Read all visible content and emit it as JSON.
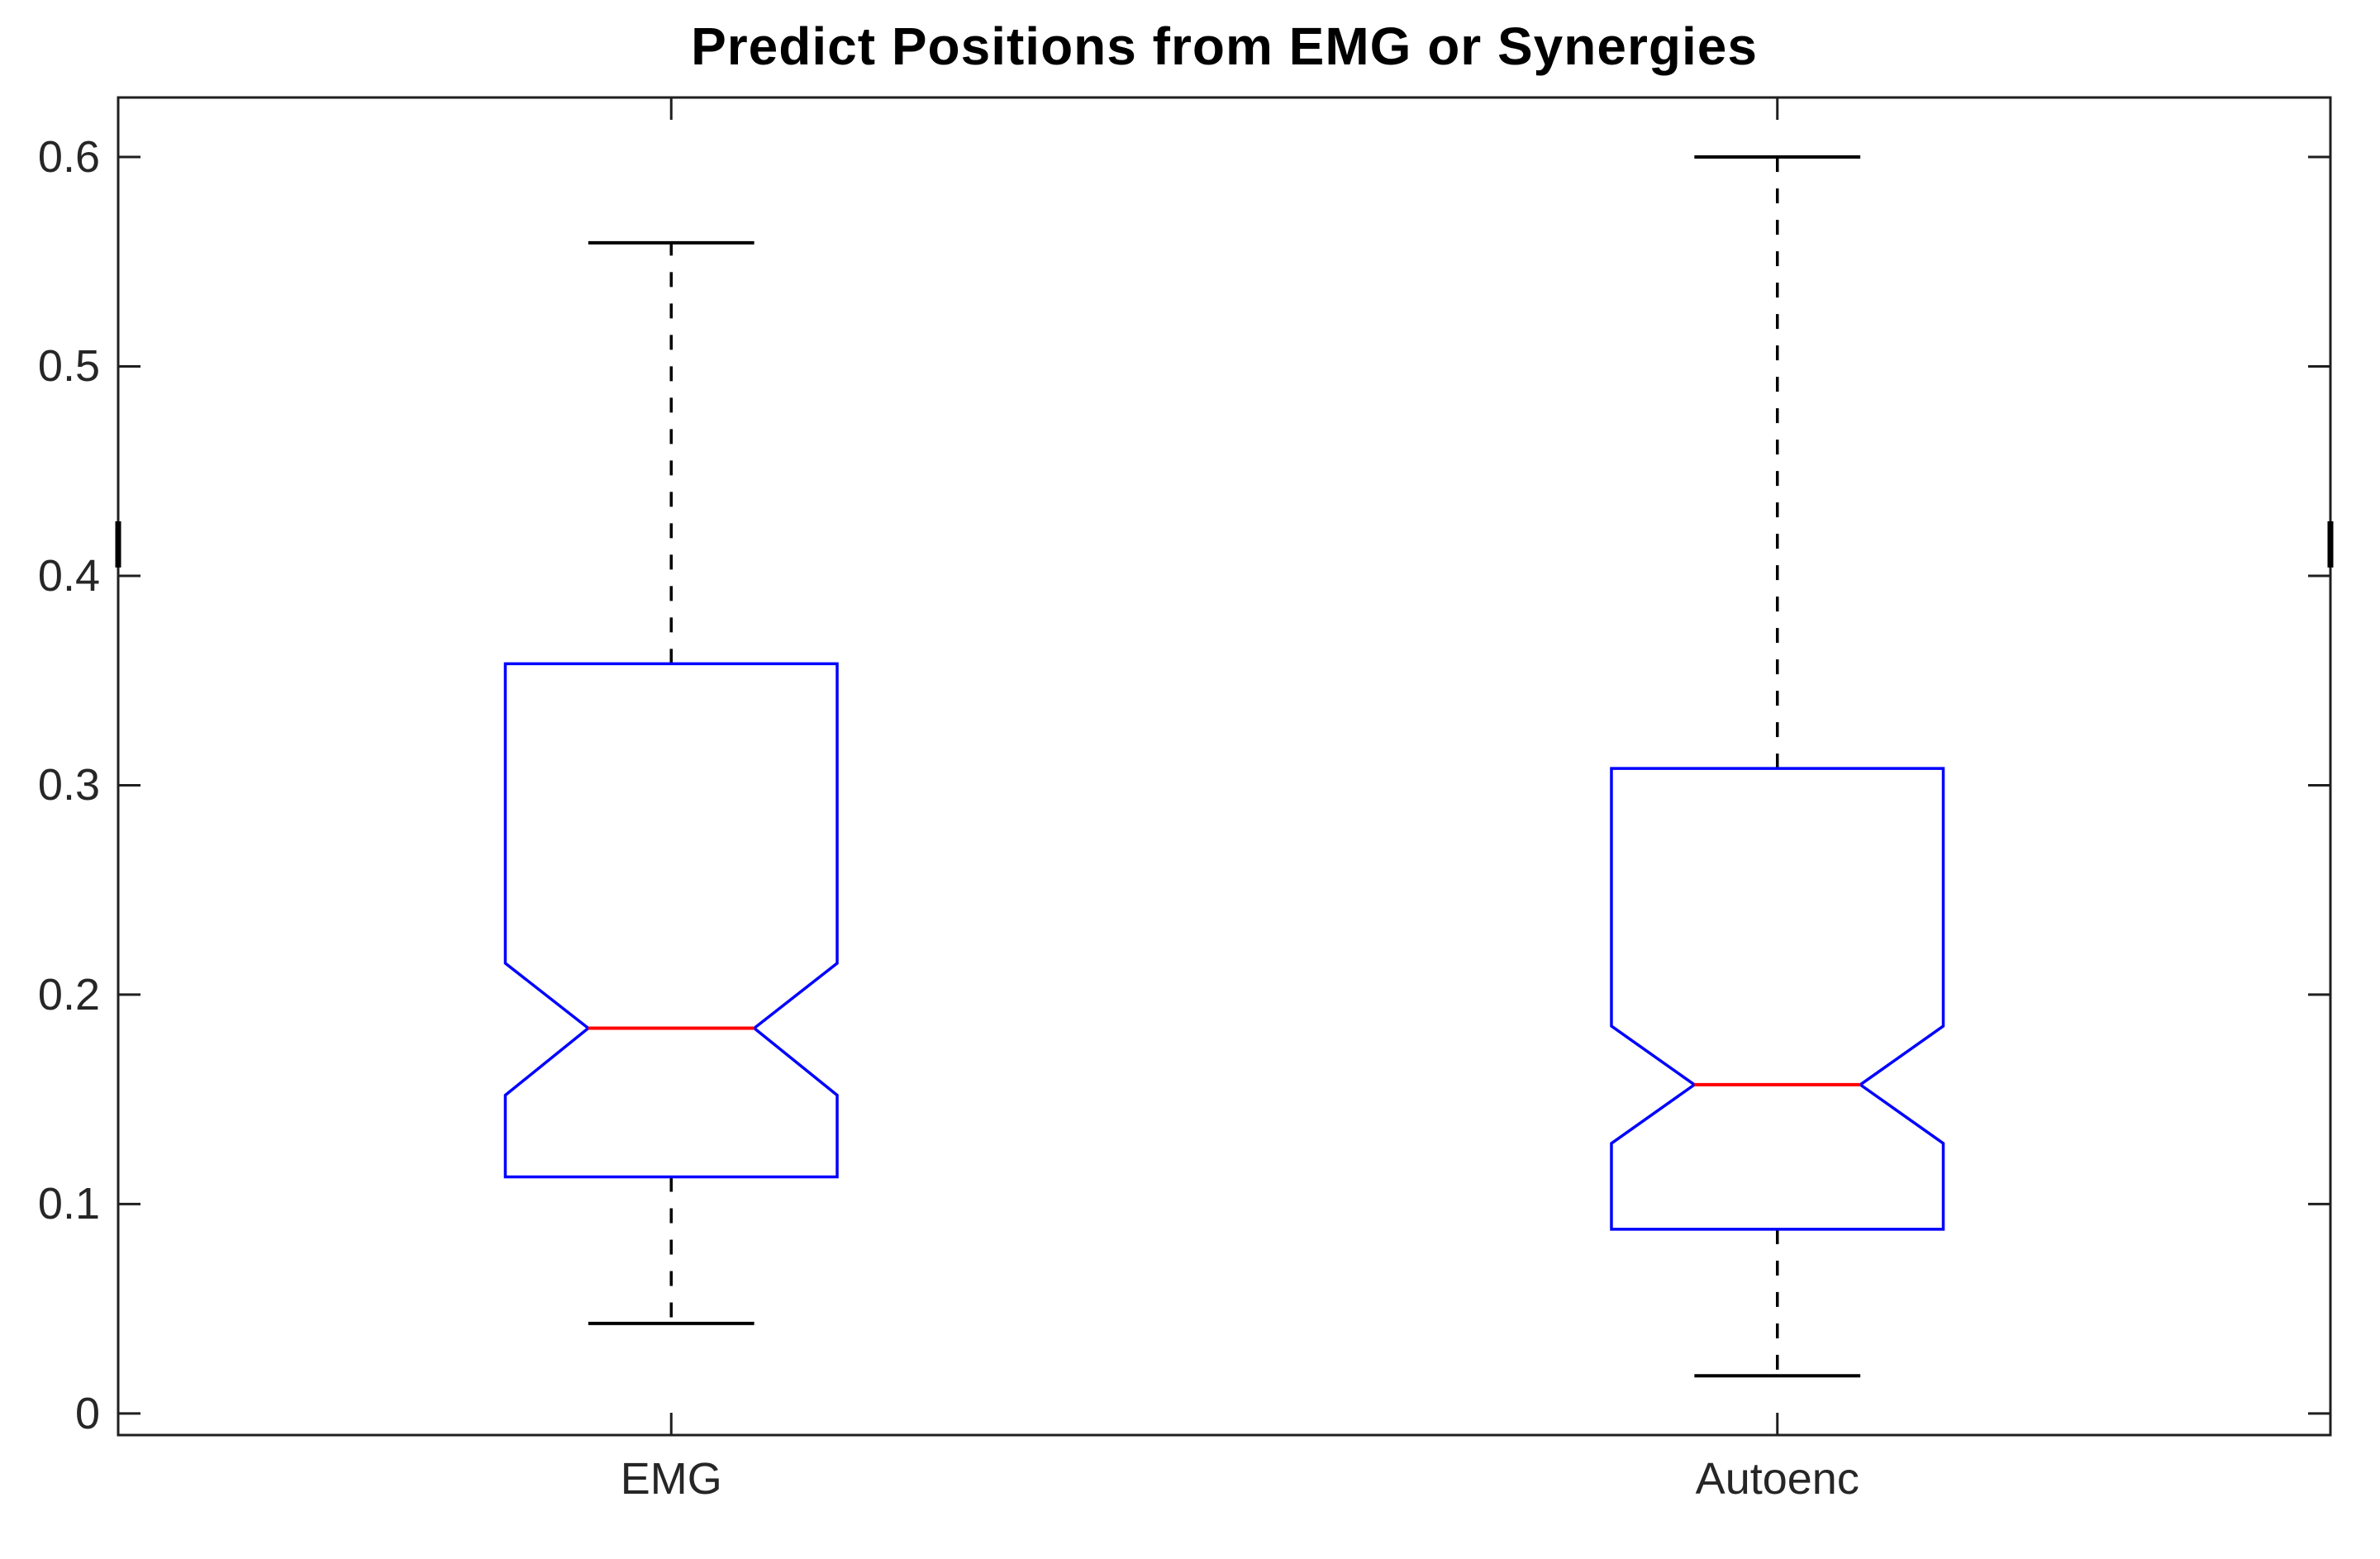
{
  "chart_data": {
    "type": "boxplot",
    "title": "Predict Positions from EMG or Synergies",
    "categories": [
      "EMG",
      "Autoenc"
    ],
    "positions": [
      1,
      2
    ],
    "xlim": [
      0.5,
      2.5
    ],
    "ylim": [
      -0.0103,
      0.6284
    ],
    "yticks": [
      0,
      0.1,
      0.2,
      0.3,
      0.4,
      0.5,
      0.6
    ],
    "ytick_labels": [
      "0",
      "0.1",
      "0.2",
      "0.3",
      "0.4",
      "0.5",
      "0.6"
    ],
    "notched": true,
    "grid": false,
    "legend": null,
    "box_half_width": 0.15,
    "notch_half_width": 0.075,
    "cap_half_width": 0.075,
    "series": [
      {
        "name": "EMG",
        "position": 1,
        "whisker_low": 0.043,
        "q1": 0.113,
        "notch_low": 0.152,
        "median": 0.184,
        "notch_high": 0.215,
        "q3": 0.358,
        "whisker_high": 0.559
      },
      {
        "name": "Autoenc",
        "position": 2,
        "whisker_low": 0.018,
        "q1": 0.088,
        "notch_low": 0.129,
        "median": 0.157,
        "notch_high": 0.185,
        "q3": 0.308,
        "whisker_high": 0.6
      }
    ],
    "edge_marks": {
      "at_x": [
        0.5,
        2.5
      ],
      "y_low": 0.404,
      "y_high": 0.426
    },
    "colors": {
      "box": "#0000ff",
      "median": "#ff0000",
      "whisker": "#000000",
      "cap": "#000000",
      "axis": "#1f1f1f",
      "tick_text": "#262626",
      "title_text": "#000000",
      "background": "#ffffff"
    }
  }
}
